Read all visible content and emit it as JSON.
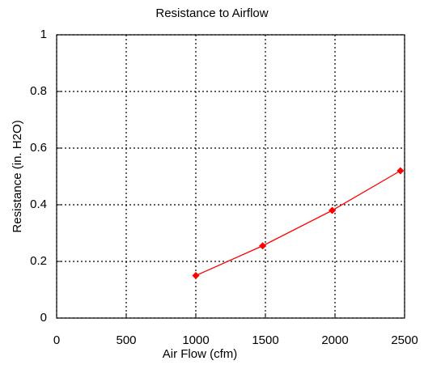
{
  "chart_data": {
    "type": "line",
    "title": "Resistance to Airflow",
    "xlabel": "Air Flow (cfm)",
    "ylabel": "Resistance (in. H2O)",
    "x": [
      1000,
      1480,
      1980,
      2470
    ],
    "series": [
      {
        "name": "Resistance",
        "color": "#ff0000",
        "values": [
          0.15,
          0.255,
          0.38,
          0.52
        ]
      }
    ],
    "xlim": [
      0,
      2500
    ],
    "xticks": [
      0,
      500,
      1000,
      1500,
      2000,
      2500
    ],
    "ylim": [
      0,
      1
    ],
    "yticks": [
      0,
      0.2,
      0.4,
      0.6,
      0.8,
      1
    ],
    "grid": true
  }
}
